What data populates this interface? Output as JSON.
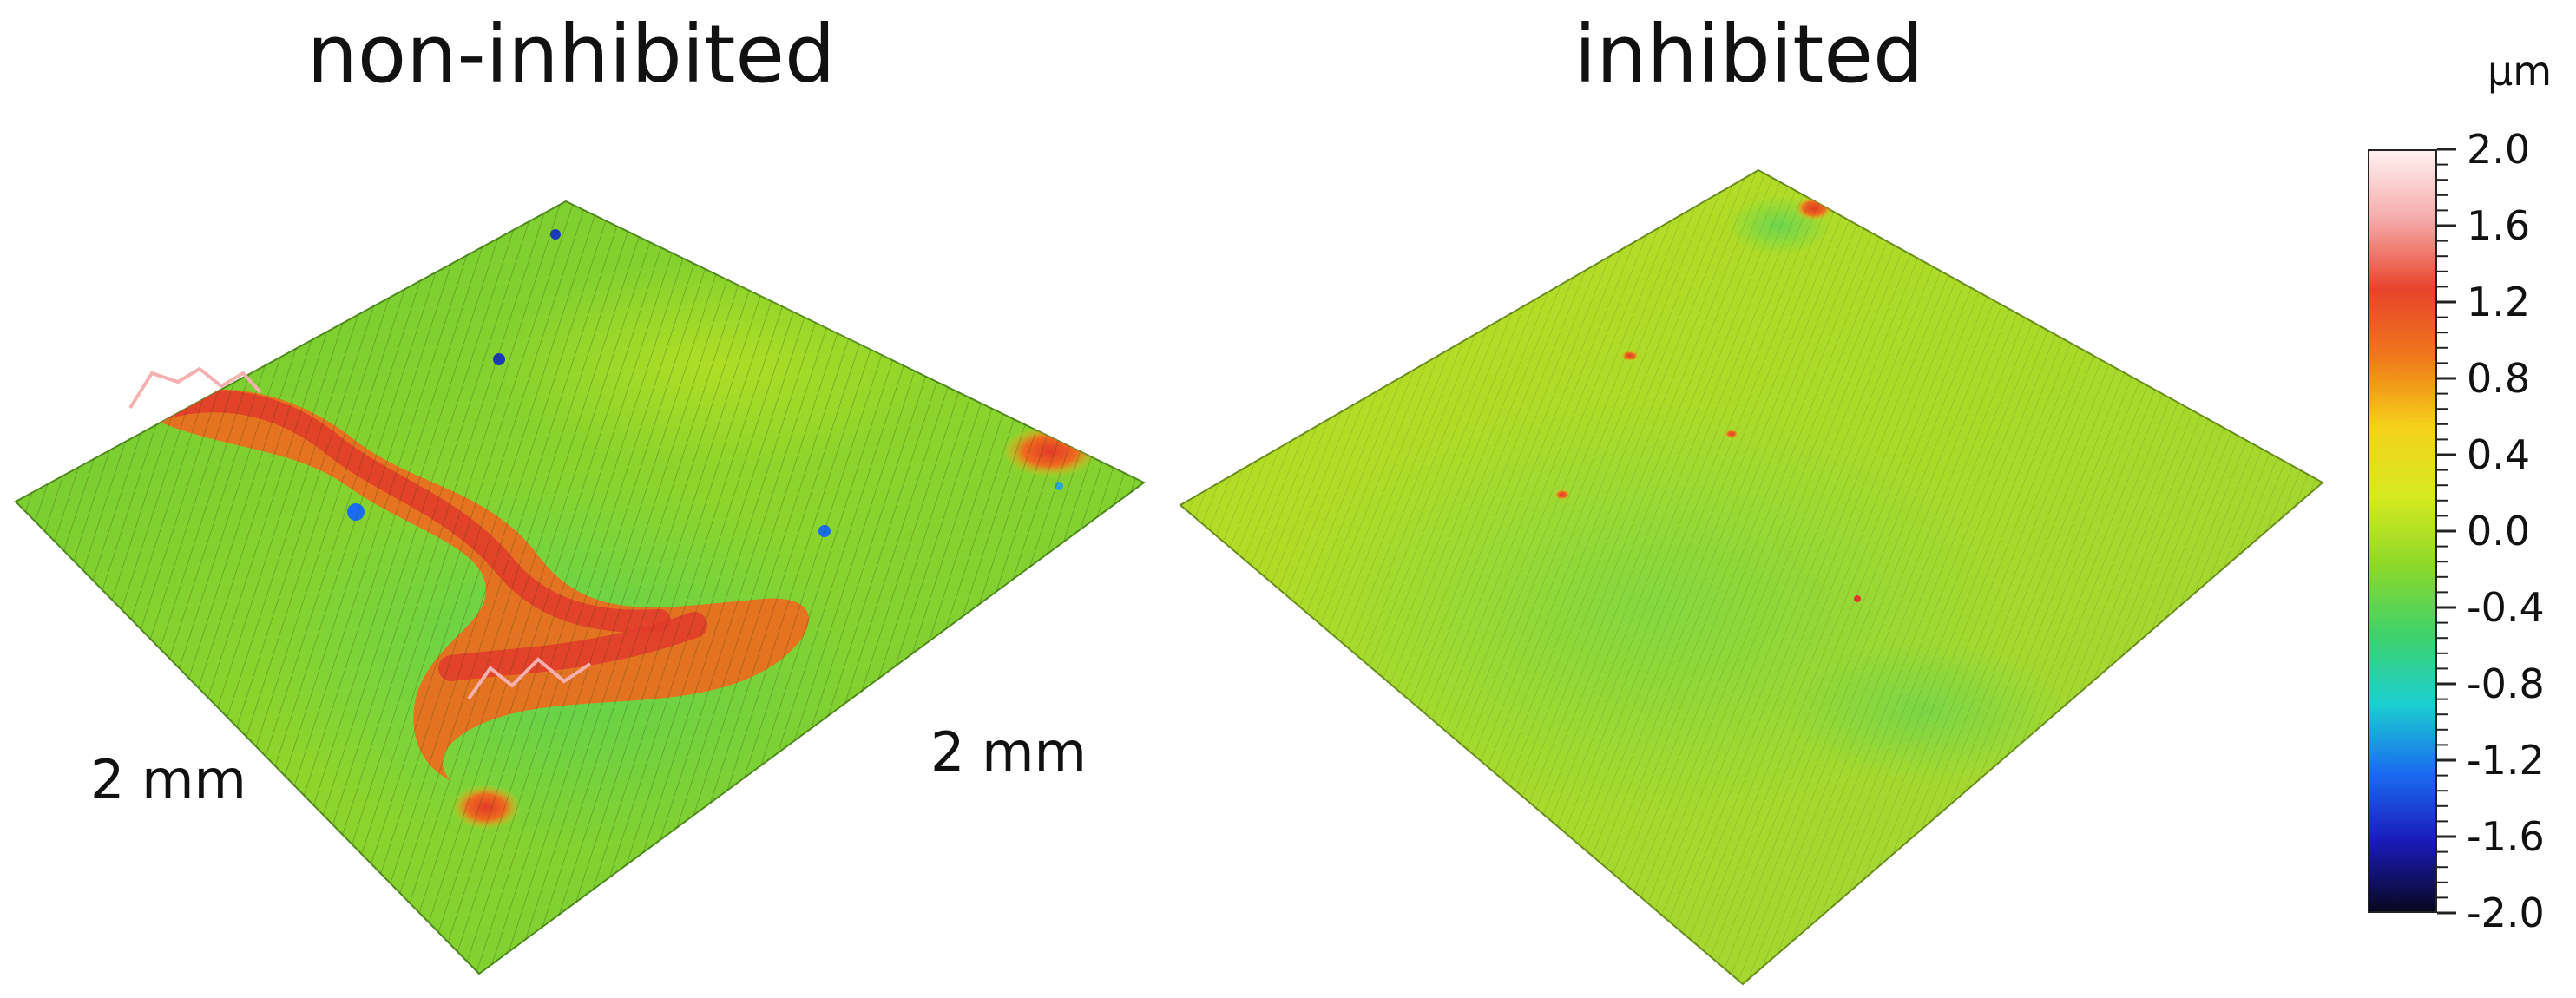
{
  "panels": [
    {
      "title": "non-inhibited",
      "dimension_label": "2 mm"
    },
    {
      "title": "inhibited",
      "dimension_label": "2 mm"
    }
  ],
  "colorbar": {
    "unit": "μm",
    "min": -2.0,
    "max": 2.0,
    "tick_labels": [
      "2.0",
      "1.6",
      "1.2",
      "0.8",
      "0.4",
      "0.0",
      "-0.4",
      "-0.8",
      "-1.2",
      "-1.6",
      "-2.0"
    ],
    "colors": [
      "#fff0f0",
      "#f5a9a9",
      "#e8432a",
      "#f07a1a",
      "#f5d21a",
      "#d6ea1f",
      "#8ed82a",
      "#3fd26a",
      "#1ccfcf",
      "#1a6cf0",
      "#1a1ab8",
      "#080820"
    ]
  },
  "surface_colors": {
    "base_green": "#7ccf2e",
    "yellow_green": "#c4e21e",
    "orange": "#ee6a1e",
    "red": "#e23a2a",
    "cyan_blue": "#2aa7d8",
    "shadow": "#2b3d12"
  }
}
